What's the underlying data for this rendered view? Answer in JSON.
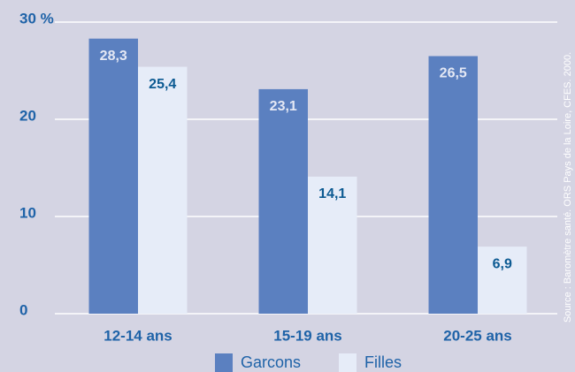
{
  "chart_data": {
    "type": "bar",
    "categories": [
      "12-14 ans",
      "15-19 ans",
      "20-25 ans"
    ],
    "series": [
      {
        "name": "Garcons",
        "color": "#5b80c0",
        "values": [
          28.3,
          23.1,
          26.5
        ],
        "value_labels": [
          "28,3",
          "23,1",
          "26,5"
        ],
        "label_color": "#e4e8f4"
      },
      {
        "name": "Filles",
        "color": "#e6ecf8",
        "values": [
          25.4,
          14.1,
          6.9
        ],
        "value_labels": [
          "25,4",
          "14,1",
          "6,9"
        ],
        "label_color": "#0c5a92"
      }
    ],
    "ylim": [
      0,
      30
    ],
    "yticks": [
      0,
      10,
      20,
      {
        "value": 30,
        "label": "30 %"
      }
    ],
    "grid": true,
    "legend": "bottom",
    "source": "Source : Baromètre santé. ORS Pays de la Loire, CFES. 2000."
  }
}
